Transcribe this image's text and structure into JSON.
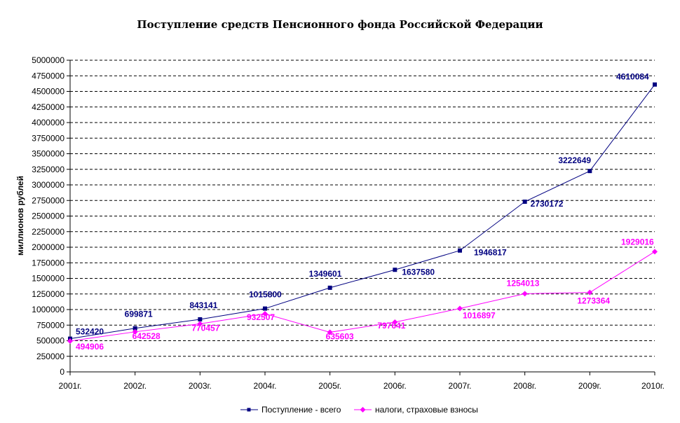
{
  "chart_data": {
    "type": "line",
    "title": "Поступление средств Пенсионного фонда Российской Федерации",
    "ylabel": "миллионов рублей",
    "xlabel": "",
    "categories": [
      "2001г.",
      "2002г.",
      "2003г.",
      "2004г.",
      "2005г.",
      "2006г.",
      "2007г.",
      "2008г.",
      "2009г.",
      "2010г."
    ],
    "ylim": [
      0,
      5000000
    ],
    "y_tick_step": 250000,
    "y_ticks": [
      "0",
      "250000",
      "500000",
      "750000",
      "1000000",
      "1250000",
      "1500000",
      "1750000",
      "2000000",
      "2250000",
      "2500000",
      "2750000",
      "3000000",
      "3250000",
      "3500000",
      "3750000",
      "4000000",
      "4250000",
      "4500000",
      "4750000",
      "5000000"
    ],
    "grid": true,
    "legend_position": "bottom",
    "series": [
      {
        "name": "Поступление - всего",
        "color": "#000080",
        "marker": "square",
        "values": [
          532420,
          699871,
          843141,
          1015800,
          1349601,
          1637580,
          1946817,
          2730172,
          3222649,
          4610084
        ],
        "labels": [
          "532420",
          "699871",
          "843141",
          "1015800",
          "1349601",
          "1637580",
          "1946817",
          "2730172",
          "3222649",
          "4610084"
        ]
      },
      {
        "name": "налоги, страховые взносы",
        "color": "#ff00ff",
        "marker": "diamond",
        "values": [
          494906,
          642528,
          770457,
          932507,
          635603,
          797641,
          1016897,
          1254013,
          1273364,
          1929016
        ],
        "labels": [
          "494906",
          "642528",
          "770457",
          "932507",
          "635603",
          "797641",
          "1016897",
          "1254013",
          "1273364",
          "1929016"
        ]
      }
    ]
  }
}
